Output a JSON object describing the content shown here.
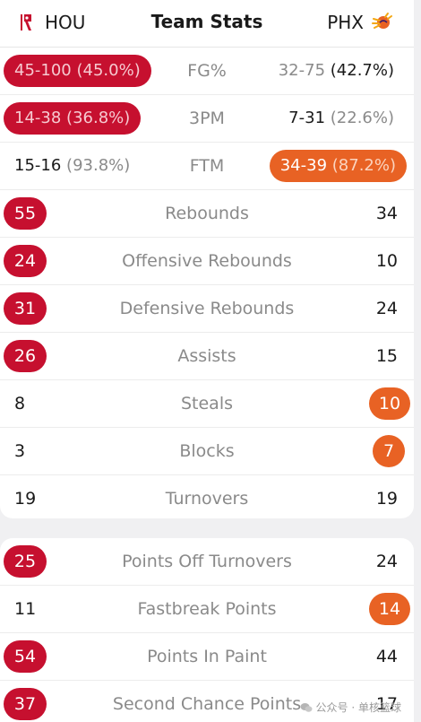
{
  "header": {
    "home_team": "HOU",
    "away_team": "PHX",
    "title": "Team Stats"
  },
  "colors": {
    "home_accent": "#c6102f",
    "away_accent": "#e86224"
  },
  "shooting": [
    {
      "label": "FG%",
      "home_made": "45-100",
      "home_pct": "(45.0%)",
      "away_made": "32-75",
      "away_pct": "(42.7%)",
      "leader": "home"
    },
    {
      "label": "3PM",
      "home_made": "14-38",
      "home_pct": "(36.8%)",
      "away_made": "7-31",
      "away_pct": "(22.6%)",
      "leader": "home"
    },
    {
      "label": "FTM",
      "home_made": "15-16",
      "home_pct": "(93.8%)",
      "away_made": "34-39",
      "away_pct": "(87.2%)",
      "leader": "away"
    }
  ],
  "stats": [
    {
      "label": "Rebounds",
      "home": "55",
      "away": "34",
      "leader": "home"
    },
    {
      "label": "Offensive Rebounds",
      "home": "24",
      "away": "10",
      "leader": "home"
    },
    {
      "label": "Defensive Rebounds",
      "home": "31",
      "away": "24",
      "leader": "home"
    },
    {
      "label": "Assists",
      "home": "26",
      "away": "15",
      "leader": "home"
    },
    {
      "label": "Steals",
      "home": "8",
      "away": "10",
      "leader": "away"
    },
    {
      "label": "Blocks",
      "home": "3",
      "away": "7",
      "leader": "away"
    },
    {
      "label": "Turnovers",
      "home": "19",
      "away": "19",
      "leader": "none"
    }
  ],
  "extra_stats": [
    {
      "label": "Points Off Turnovers",
      "home": "25",
      "away": "24",
      "leader": "home"
    },
    {
      "label": "Fastbreak Points",
      "home": "11",
      "away": "14",
      "leader": "away"
    },
    {
      "label": "Points In Paint",
      "home": "54",
      "away": "44",
      "leader": "home"
    },
    {
      "label": "Second Chance Points",
      "home": "37",
      "away": "17",
      "leader": "home"
    }
  ],
  "watermark": {
    "text": "公众号 · 单核篮球"
  },
  "icons": {
    "home_logo": "rockets-logo-icon",
    "away_logo": "suns-logo-icon",
    "watermark_icon": "wechat-icon"
  }
}
